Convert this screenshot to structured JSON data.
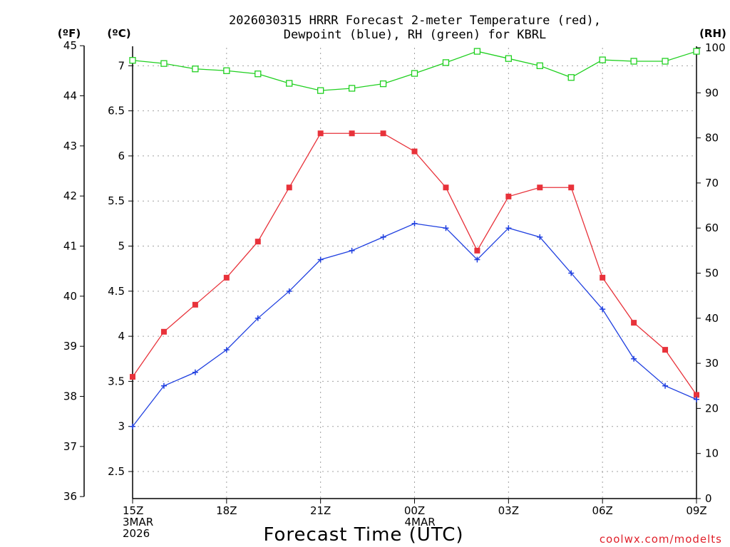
{
  "chart_data": {
    "type": "line",
    "title_lines": [
      "2026030315 HRRR Forecast 2-meter Temperature (red),",
      "Dewpoint (blue), RH (green) for KBRL"
    ],
    "xlabel": "Forecast Time (UTC)",
    "axis_units": {
      "fahrenheit": "(ºF)",
      "celsius": "(ºC)",
      "rh": "(RH)"
    },
    "x_ticks": [
      {
        "hour": 0,
        "lines": [
          "15Z",
          "3MAR",
          "2026"
        ]
      },
      {
        "hour": 3,
        "lines": [
          "18Z"
        ]
      },
      {
        "hour": 6,
        "lines": [
          "21Z"
        ]
      },
      {
        "hour": 9,
        "lines": [
          "00Z",
          "4MAR"
        ]
      },
      {
        "hour": 12,
        "lines": [
          "03Z"
        ]
      },
      {
        "hour": 15,
        "lines": [
          "06Z"
        ]
      },
      {
        "hour": 18,
        "lines": [
          "09Z"
        ]
      }
    ],
    "x_range": [
      0,
      18
    ],
    "celsius_range": [
      2.2,
      7.2
    ],
    "celsius_ticks": [
      "2.5",
      "3",
      "3.5",
      "4",
      "4.5",
      "5",
      "5.5",
      "6",
      "6.5",
      "7"
    ],
    "fahrenheit_ticks": [
      "36",
      "37",
      "38",
      "39",
      "40",
      "41",
      "42",
      "43",
      "44",
      "45"
    ],
    "rh_range": [
      0,
      100
    ],
    "rh_ticks": [
      "0",
      "10",
      "20",
      "30",
      "40",
      "50",
      "60",
      "70",
      "80",
      "90",
      "100"
    ],
    "grid": true,
    "series": [
      {
        "name": "Temperature",
        "axis": "celsius",
        "color": "#e8323a",
        "marker": "filled-square",
        "values": [
          3.55,
          4.05,
          4.35,
          4.65,
          5.05,
          5.65,
          6.25,
          6.25,
          6.25,
          6.05,
          5.65,
          4.95,
          5.55,
          5.65,
          5.65,
          4.65,
          4.15,
          3.85,
          3.35
        ]
      },
      {
        "name": "Dewpoint",
        "axis": "celsius",
        "color": "#2040e0",
        "marker": "plus",
        "values": [
          3.0,
          3.45,
          3.6,
          3.85,
          4.2,
          4.5,
          4.85,
          4.95,
          5.1,
          5.25,
          5.2,
          4.85,
          5.2,
          5.1,
          4.7,
          4.3,
          3.75,
          3.45,
          3.3
        ]
      },
      {
        "name": "RH",
        "axis": "rh",
        "color": "#20d020",
        "marker": "open-square",
        "values": [
          97.2,
          96.5,
          95.3,
          94.9,
          94.2,
          92.1,
          90.5,
          91.0,
          92.0,
          94.3,
          96.7,
          99.2,
          97.6,
          96.0,
          93.4,
          97.3,
          97.0,
          97.0,
          99.2
        ]
      }
    ]
  },
  "credit": "coolwx.com/modelts"
}
